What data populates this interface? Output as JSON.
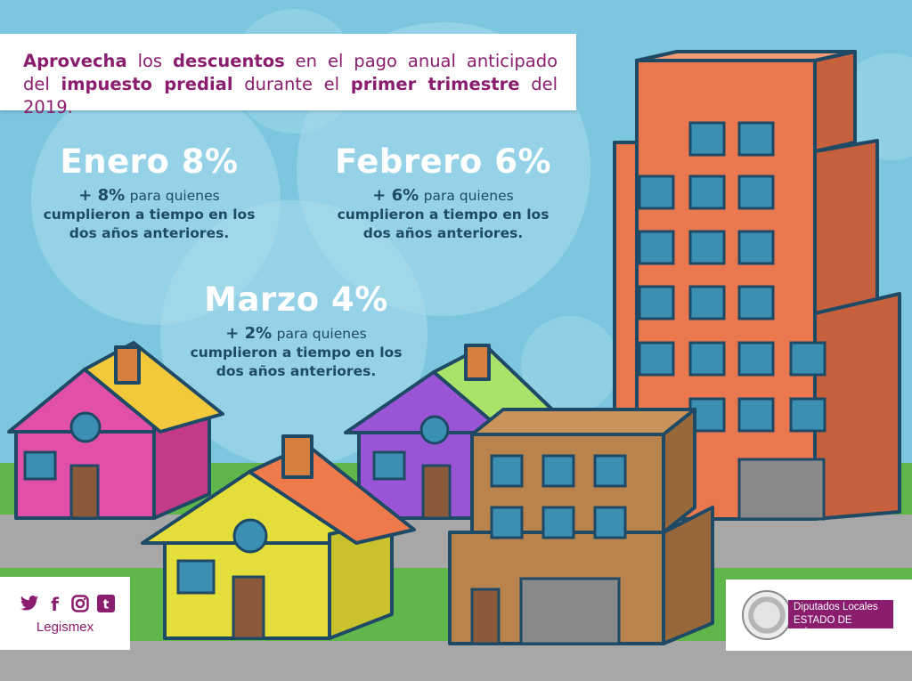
{
  "banner": {
    "w1": "Aprovecha",
    "w2": "los",
    "w3": "descuentos",
    "w4": "en el pago anual anticipado",
    "w5": "del",
    "w6": "impuesto predial",
    "w7": "durante el",
    "w8": "primer trimestre",
    "w9": "del 2019."
  },
  "discounts": [
    {
      "month": "Enero 8%",
      "bonus": "+ 8%",
      "rest1": "para quienes",
      "rest2": "cumplieron a tiempo en los",
      "rest3": "dos años anteriores."
    },
    {
      "month": "Febrero 6%",
      "bonus": "+ 6%",
      "rest1": "para quienes",
      "rest2": "cumplieron a tiempo en los",
      "rest3": "dos años anteriores."
    },
    {
      "month": "Marzo 4%",
      "bonus": "+ 2%",
      "rest1": "para quienes",
      "rest2": "cumplieron a tiempo en los",
      "rest3": "dos años anteriores."
    }
  ],
  "social": {
    "twitter_icon": "twitter-icon",
    "facebook_icon": "facebook-icon",
    "instagram_icon": "instagram-icon",
    "tumblr_icon": "tumblr-icon",
    "handle": "Legismex"
  },
  "logo": {
    "line1": "Diputados Locales",
    "line2": "ESTADO DE MÉXICO"
  },
  "colors": {
    "sky": "#7cc6e0",
    "brand": "#8b1d6f",
    "outline": "#1f4a66",
    "tower": "#e9784f",
    "road": "#a7a7a7",
    "grass": "#5fb64a"
  }
}
